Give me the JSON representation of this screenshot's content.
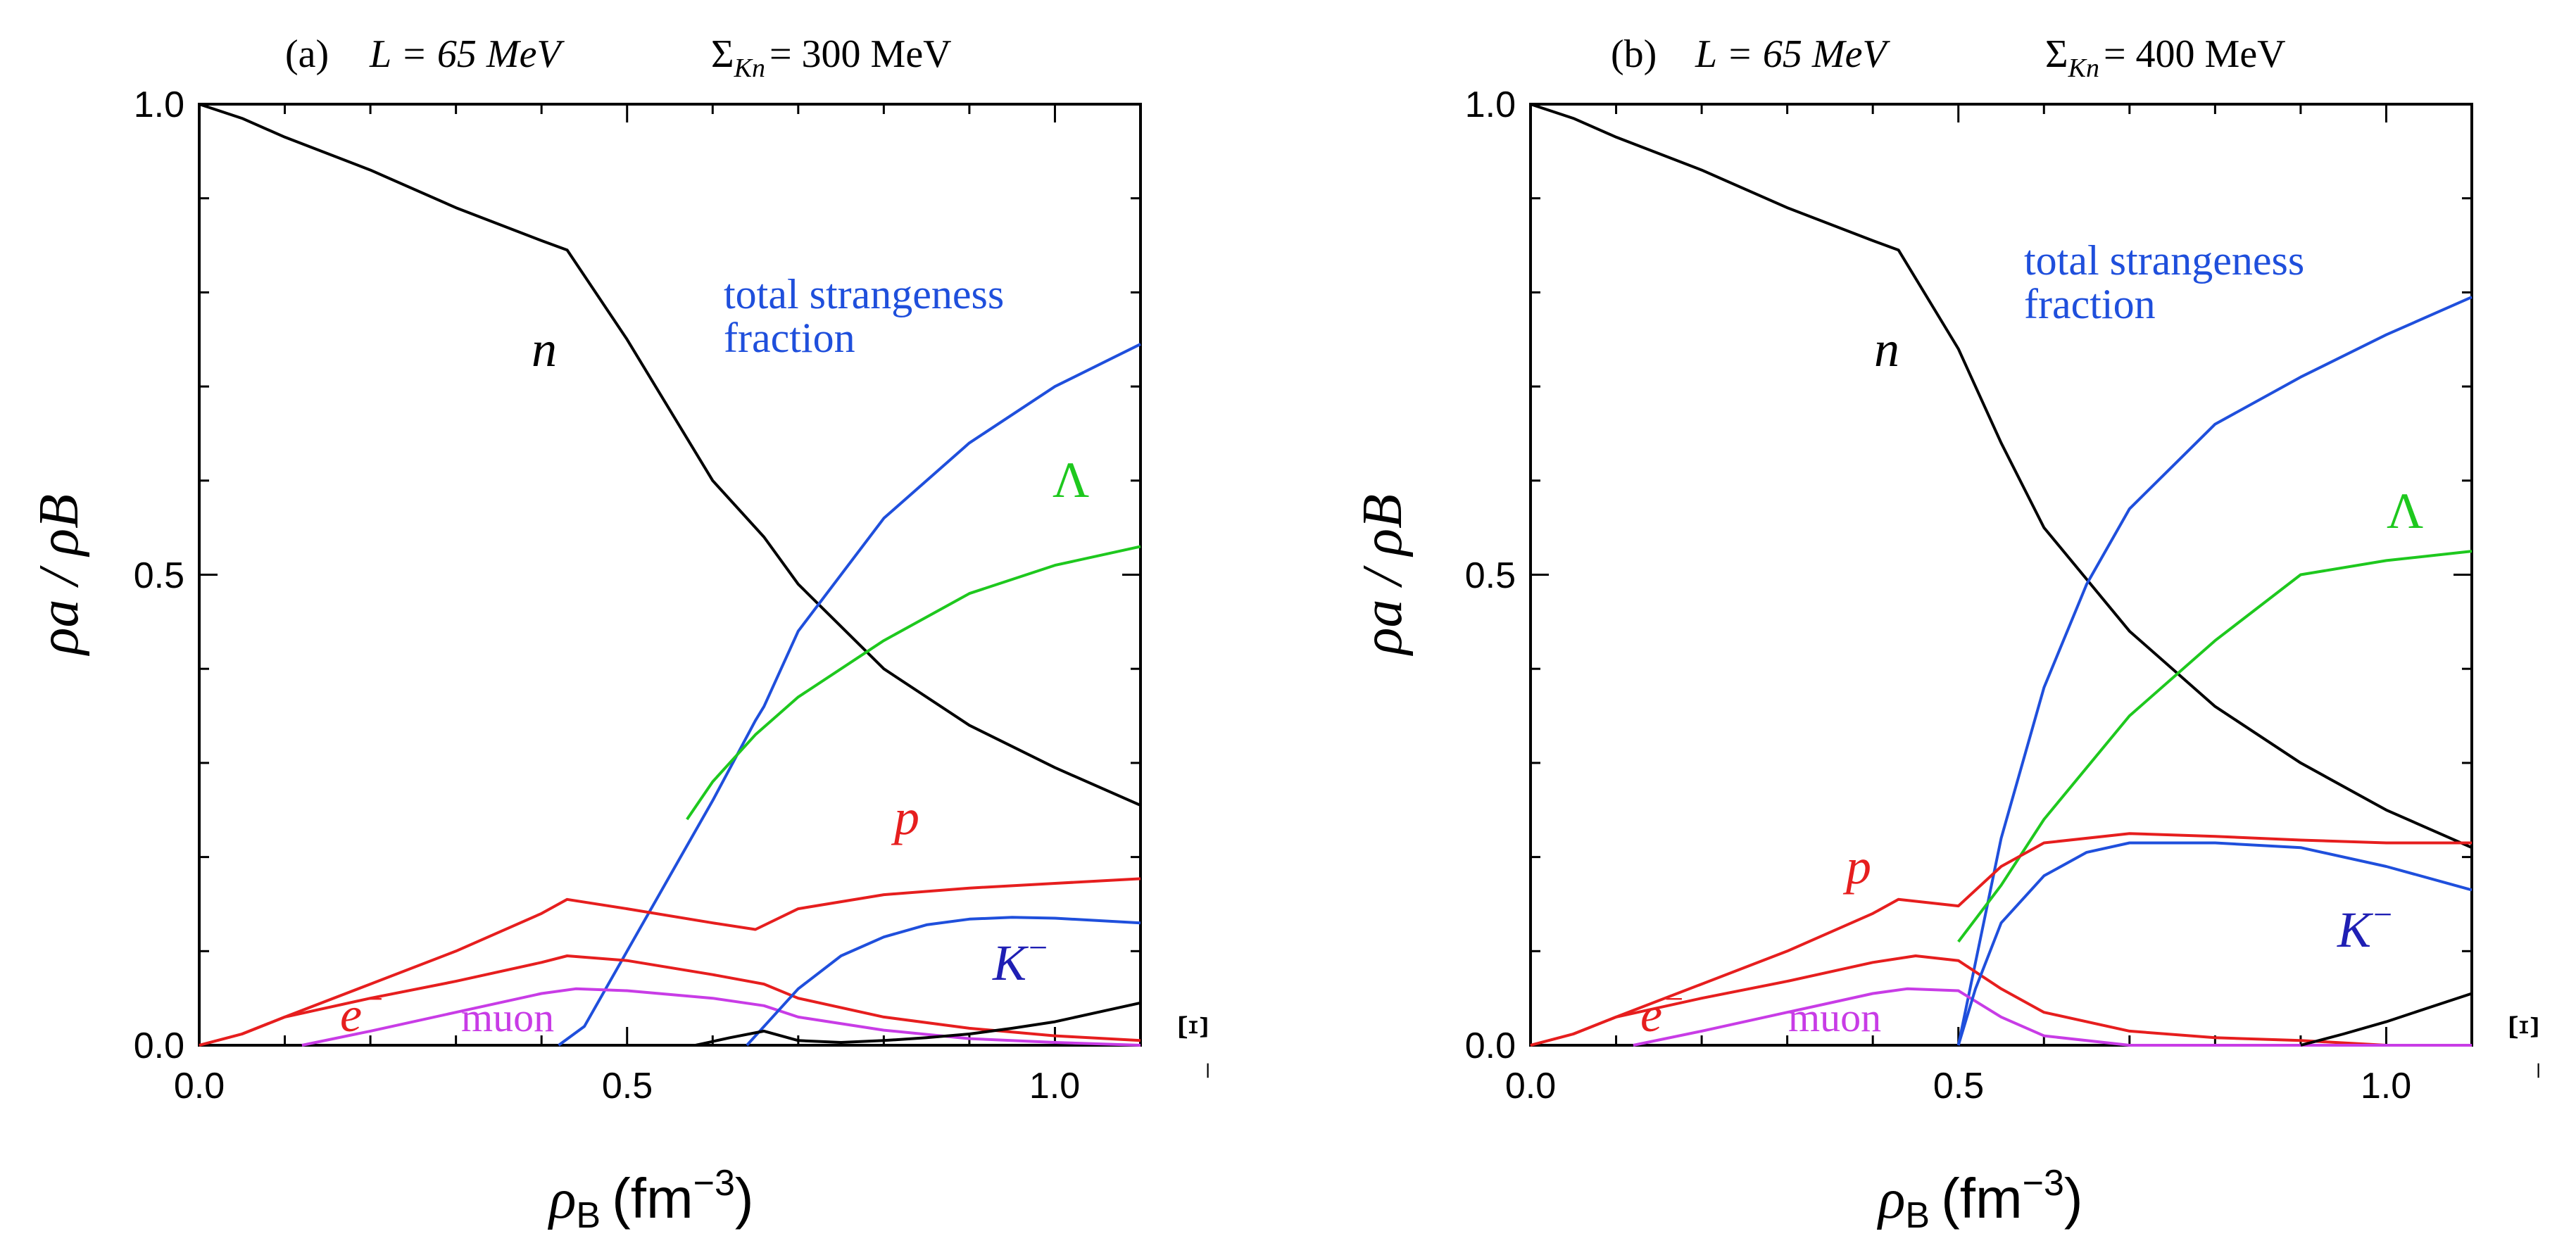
{
  "chart_data": [
    {
      "type": "line",
      "panel": "(a)",
      "title_panel": "(a)",
      "title_L": "L = 65 MeV",
      "title_sigma": "Σ",
      "title_sigma_sub": "Kn",
      "title_sigma_value": "= 300 MeV",
      "xlabel_sym": "ρ",
      "xlabel_sub": "B",
      "xlabel_unit": "(fm",
      "xlabel_exp": "−3",
      "xlabel_close": ")",
      "ylabel": "ρa / ρB",
      "xlim": [
        0.0,
        1.1
      ],
      "ylim": [
        0.0,
        1.0
      ],
      "xticks": [
        0.0,
        0.5,
        1.0
      ],
      "xtick_labels": [
        "0.0",
        "0.5",
        "1.0"
      ],
      "yticks": [
        0.0,
        0.5,
        1.0
      ],
      "ytick_labels": [
        "0.0",
        "0.5",
        "1.0"
      ],
      "annotations": {
        "n": "n",
        "strangeness_line1": "total strangeness",
        "strangeness_line2": "fraction",
        "lambda": "Λ",
        "p": "p",
        "kminus_base": "K",
        "kminus_sup": "−",
        "eminus_base": "e",
        "eminus_sup": "−",
        "muon": "muon",
        "xi_base": "Ξ",
        "xi_sup": "−"
      },
      "series": [
        {
          "name": "n",
          "color": "#000000",
          "x": [
            0.0,
            0.05,
            0.1,
            0.2,
            0.3,
            0.4,
            0.43,
            0.5,
            0.6,
            0.66,
            0.7,
            0.8,
            0.9,
            1.0,
            1.1
          ],
          "y": [
            1.0,
            0.985,
            0.965,
            0.93,
            0.89,
            0.855,
            0.845,
            0.75,
            0.6,
            0.54,
            0.49,
            0.4,
            0.34,
            0.295,
            0.255
          ]
        },
        {
          "name": "total strangeness fraction",
          "color": "#1f4fdc",
          "x": [
            0.42,
            0.45,
            0.5,
            0.55,
            0.6,
            0.65,
            0.66,
            0.7,
            0.8,
            0.9,
            1.0,
            1.1
          ],
          "y": [
            0.0,
            0.02,
            0.1,
            0.18,
            0.26,
            0.345,
            0.36,
            0.44,
            0.56,
            0.64,
            0.7,
            0.745
          ]
        },
        {
          "name": "Λ",
          "color": "#1ec81e",
          "x": [
            0.57,
            0.6,
            0.65,
            0.7,
            0.8,
            0.9,
            1.0,
            1.1
          ],
          "y": [
            0.24,
            0.28,
            0.33,
            0.37,
            0.43,
            0.48,
            0.51,
            0.53
          ]
        },
        {
          "name": "p",
          "color": "#e61e1e",
          "x": [
            0.0,
            0.05,
            0.1,
            0.2,
            0.3,
            0.4,
            0.43,
            0.5,
            0.6,
            0.65,
            0.7,
            0.8,
            0.9,
            1.0,
            1.1
          ],
          "y": [
            0.0,
            0.012,
            0.03,
            0.065,
            0.1,
            0.14,
            0.155,
            0.145,
            0.13,
            0.123,
            0.145,
            0.16,
            0.167,
            0.172,
            0.177
          ]
        },
        {
          "name": "e−",
          "color": "#e61e1e",
          "x": [
            0.0,
            0.05,
            0.1,
            0.2,
            0.3,
            0.4,
            0.43,
            0.5,
            0.6,
            0.66,
            0.7,
            0.8,
            0.9,
            1.0,
            1.1
          ],
          "y": [
            0.0,
            0.012,
            0.03,
            0.05,
            0.068,
            0.088,
            0.095,
            0.09,
            0.075,
            0.065,
            0.05,
            0.03,
            0.018,
            0.01,
            0.005
          ]
        },
        {
          "name": "muon",
          "color": "#c83ce6",
          "x": [
            0.12,
            0.2,
            0.3,
            0.4,
            0.44,
            0.5,
            0.6,
            0.66,
            0.7,
            0.8,
            0.9,
            1.0,
            1.1
          ],
          "y": [
            0.0,
            0.015,
            0.035,
            0.055,
            0.06,
            0.058,
            0.05,
            0.042,
            0.03,
            0.016,
            0.007,
            0.003,
            0.0
          ]
        },
        {
          "name": "K−",
          "color": "#1f4fdc",
          "x": [
            0.64,
            0.66,
            0.7,
            0.75,
            0.8,
            0.85,
            0.9,
            0.95,
            1.0,
            1.1
          ],
          "y": [
            0.0,
            0.02,
            0.06,
            0.095,
            0.115,
            0.128,
            0.134,
            0.136,
            0.135,
            0.13
          ]
        },
        {
          "name": "Ξ−",
          "color": "#000000",
          "x": [
            0.58,
            0.62,
            0.66,
            0.7,
            0.75,
            0.8,
            0.85,
            0.9,
            0.95,
            1.0,
            1.05,
            1.1
          ],
          "y": [
            0.0,
            0.008,
            0.015,
            0.005,
            0.003,
            0.005,
            0.008,
            0.012,
            0.018,
            0.025,
            0.035,
            0.045
          ]
        }
      ]
    },
    {
      "type": "line",
      "panel": "(b)",
      "title_panel": "(b)",
      "title_L": "L = 65 MeV",
      "title_sigma": "Σ",
      "title_sigma_sub": "Kn",
      "title_sigma_value": "= 400 MeV",
      "xlabel_sym": "ρ",
      "xlabel_sub": "B",
      "xlabel_unit": "(fm",
      "xlabel_exp": "−3",
      "xlabel_close": ")",
      "ylabel": "ρa / ρB",
      "xlim": [
        0.0,
        1.1
      ],
      "ylim": [
        0.0,
        1.0
      ],
      "xticks": [
        0.0,
        0.5,
        1.0
      ],
      "xtick_labels": [
        "0.0",
        "0.5",
        "1.0"
      ],
      "yticks": [
        0.0,
        0.5,
        1.0
      ],
      "ytick_labels": [
        "0.0",
        "0.5",
        "1.0"
      ],
      "annotations": {
        "n": "n",
        "strangeness_line1": "total strangeness",
        "strangeness_line2": "fraction",
        "lambda": "Λ",
        "p": "p",
        "kminus_base": "K",
        "kminus_sup": "−",
        "eminus_base": "e",
        "eminus_sup": "−",
        "muon": "muon",
        "xi_base": "Ξ",
        "xi_sup": "−"
      },
      "series": [
        {
          "name": "n",
          "color": "#000000",
          "x": [
            0.0,
            0.05,
            0.1,
            0.2,
            0.3,
            0.4,
            0.43,
            0.5,
            0.55,
            0.6,
            0.7,
            0.8,
            0.9,
            1.0,
            1.1
          ],
          "y": [
            1.0,
            0.985,
            0.965,
            0.93,
            0.89,
            0.855,
            0.845,
            0.74,
            0.64,
            0.55,
            0.44,
            0.36,
            0.3,
            0.25,
            0.21
          ]
        },
        {
          "name": "total strangeness fraction",
          "color": "#1f4fdc",
          "x": [
            0.5,
            0.55,
            0.6,
            0.65,
            0.7,
            0.8,
            0.9,
            1.0,
            1.1
          ],
          "y": [
            0.0,
            0.22,
            0.38,
            0.49,
            0.57,
            0.66,
            0.71,
            0.755,
            0.795
          ]
        },
        {
          "name": "Λ",
          "color": "#1ec81e",
          "x": [
            0.5,
            0.55,
            0.6,
            0.7,
            0.8,
            0.9,
            1.0,
            1.1
          ],
          "y": [
            0.11,
            0.17,
            0.24,
            0.35,
            0.43,
            0.5,
            0.515,
            0.525
          ]
        },
        {
          "name": "p",
          "color": "#e61e1e",
          "x": [
            0.0,
            0.05,
            0.1,
            0.2,
            0.3,
            0.4,
            0.43,
            0.5,
            0.55,
            0.6,
            0.7,
            0.8,
            0.9,
            1.0,
            1.1
          ],
          "y": [
            0.0,
            0.012,
            0.03,
            0.065,
            0.1,
            0.14,
            0.155,
            0.148,
            0.19,
            0.215,
            0.225,
            0.222,
            0.218,
            0.215,
            0.215
          ]
        },
        {
          "name": "e−",
          "color": "#e61e1e",
          "x": [
            0.0,
            0.05,
            0.1,
            0.2,
            0.3,
            0.4,
            0.45,
            0.5,
            0.55,
            0.6,
            0.7,
            0.8,
            0.9,
            1.0,
            1.1
          ],
          "y": [
            0.0,
            0.012,
            0.03,
            0.05,
            0.068,
            0.088,
            0.095,
            0.09,
            0.06,
            0.035,
            0.015,
            0.008,
            0.005,
            0.0,
            0.0
          ]
        },
        {
          "name": "muon",
          "color": "#c83ce6",
          "x": [
            0.12,
            0.2,
            0.3,
            0.4,
            0.44,
            0.5,
            0.55,
            0.6,
            0.7,
            0.8,
            1.1
          ],
          "y": [
            0.0,
            0.015,
            0.035,
            0.055,
            0.06,
            0.058,
            0.03,
            0.01,
            0.0,
            0.0,
            0.0
          ]
        },
        {
          "name": "K−",
          "color": "#1f4fdc",
          "x": [
            0.5,
            0.52,
            0.55,
            0.6,
            0.65,
            0.7,
            0.8,
            0.9,
            1.0,
            1.1
          ],
          "y": [
            0.0,
            0.06,
            0.13,
            0.18,
            0.205,
            0.215,
            0.215,
            0.21,
            0.19,
            0.165
          ]
        },
        {
          "name": "Ξ−",
          "color": "#000000",
          "x": [
            0.9,
            0.95,
            1.0,
            1.05,
            1.1
          ],
          "y": [
            0.0,
            0.012,
            0.025,
            0.04,
            0.055
          ]
        }
      ]
    }
  ]
}
